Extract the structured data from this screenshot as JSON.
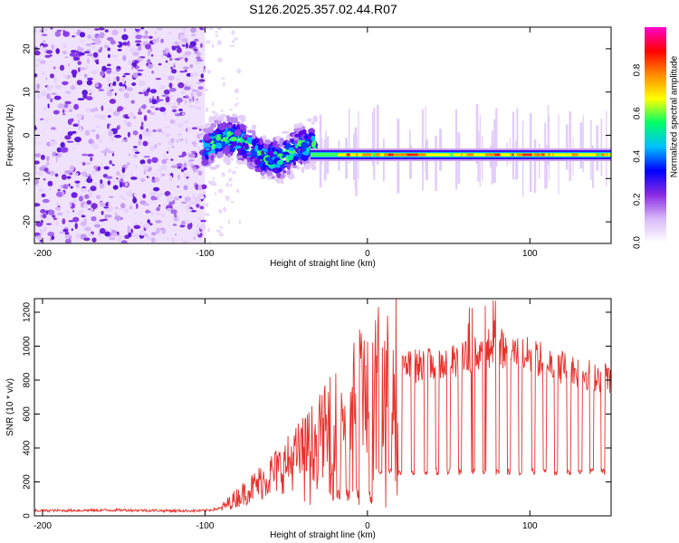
{
  "title": "S126.2025.357.02.44.R07",
  "spectrogram": {
    "xlabel": "Height of straight line (km)",
    "ylabel": "Frequency (Hz)",
    "xlim": [
      -205,
      150
    ],
    "ylim": [
      -25,
      25
    ],
    "xticks": [
      -200,
      -100,
      0,
      100
    ],
    "yticks": [
      -20,
      -10,
      0,
      10,
      20
    ],
    "colorbar": {
      "label": "Normalized spectral amplitude",
      "range": [
        0,
        1
      ],
      "ticks": [
        "0.0",
        "0.2",
        "0.4",
        "0.6",
        "0.8"
      ],
      "colors": [
        "#ffffff",
        "#d8b8f8",
        "#8a2be2",
        "#0000ff",
        "#00bfff",
        "#00ff66",
        "#ffff00",
        "#ff8c00",
        "#ff0000",
        "#ff00cc"
      ]
    },
    "regions": [
      {
        "name": "noise",
        "x_range": [
          -205,
          -100
        ],
        "freq_range": [
          -25,
          25
        ]
      },
      {
        "name": "turbulent-signal",
        "x_range": [
          -100,
          -35
        ],
        "freq_range": [
          -8,
          2
        ]
      },
      {
        "name": "tone",
        "x_range": [
          -35,
          150
        ],
        "freq_center": -4.5
      }
    ]
  },
  "chart_data": {
    "type": "line",
    "title": "S126.2025.357.02.44.R07",
    "xlabel": "Height of straight line (km)",
    "ylabel": "SNR (10 * v/v)",
    "xlim": [
      -205,
      150
    ],
    "ylim": [
      0,
      1280
    ],
    "xticks": [
      -200,
      -100,
      0,
      100
    ],
    "yticks": [
      0,
      200,
      400,
      600,
      800,
      1000,
      1200
    ],
    "series": [
      {
        "name": "SNR",
        "color": "#e8302a",
        "x": [
          -205,
          -180,
          -150,
          -120,
          -100,
          -90,
          -80,
          -70,
          -60,
          -50,
          -40,
          -30,
          -20,
          -10,
          0,
          10,
          20,
          30,
          40,
          50,
          60,
          70,
          80,
          90,
          100,
          110,
          120,
          130,
          140,
          150
        ],
        "values": [
          30,
          32,
          34,
          30,
          30,
          45,
          110,
          170,
          240,
          300,
          380,
          460,
          560,
          680,
          790,
          860,
          870,
          880,
          890,
          900,
          920,
          980,
          1000,
          960,
          940,
          910,
          880,
          850,
          830,
          810
        ],
        "drops": [
          -18,
          -12,
          -6,
          2,
          8,
          14,
          20,
          28,
          36,
          43,
          50,
          57,
          65,
          72,
          80,
          87,
          94,
          102,
          109,
          116,
          124,
          131,
          138,
          145
        ],
        "drop_level": 260
      }
    ]
  }
}
